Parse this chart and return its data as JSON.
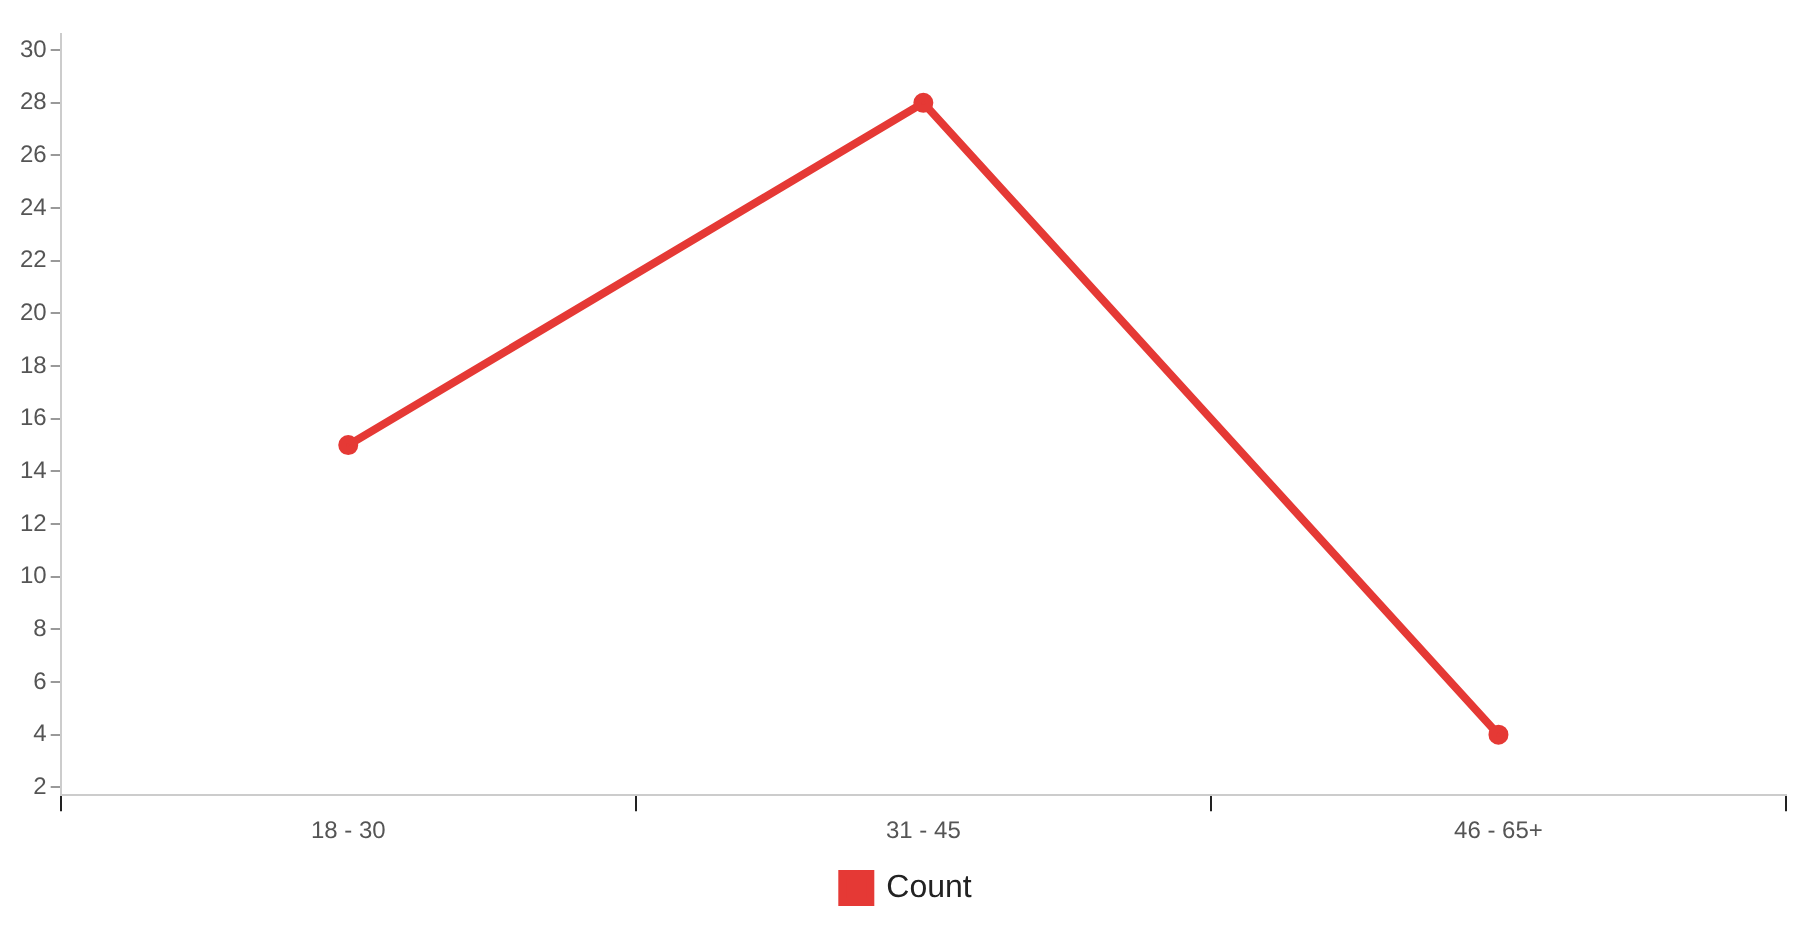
{
  "chart_data": {
    "type": "line",
    "categories": [
      "18 - 30",
      "31 - 45",
      "46 - 65+"
    ],
    "series": [
      {
        "name": "Count",
        "color": "#e53935",
        "values": [
          15,
          28,
          4
        ]
      }
    ],
    "ylim": [
      1.7,
      30.6
    ],
    "yticks": [
      2,
      4,
      6,
      8,
      10,
      12,
      14,
      16,
      18,
      20,
      22,
      24,
      26,
      28,
      30
    ],
    "grid": false,
    "legend": "bottom",
    "marker": "circle",
    "line_style": "solid"
  }
}
